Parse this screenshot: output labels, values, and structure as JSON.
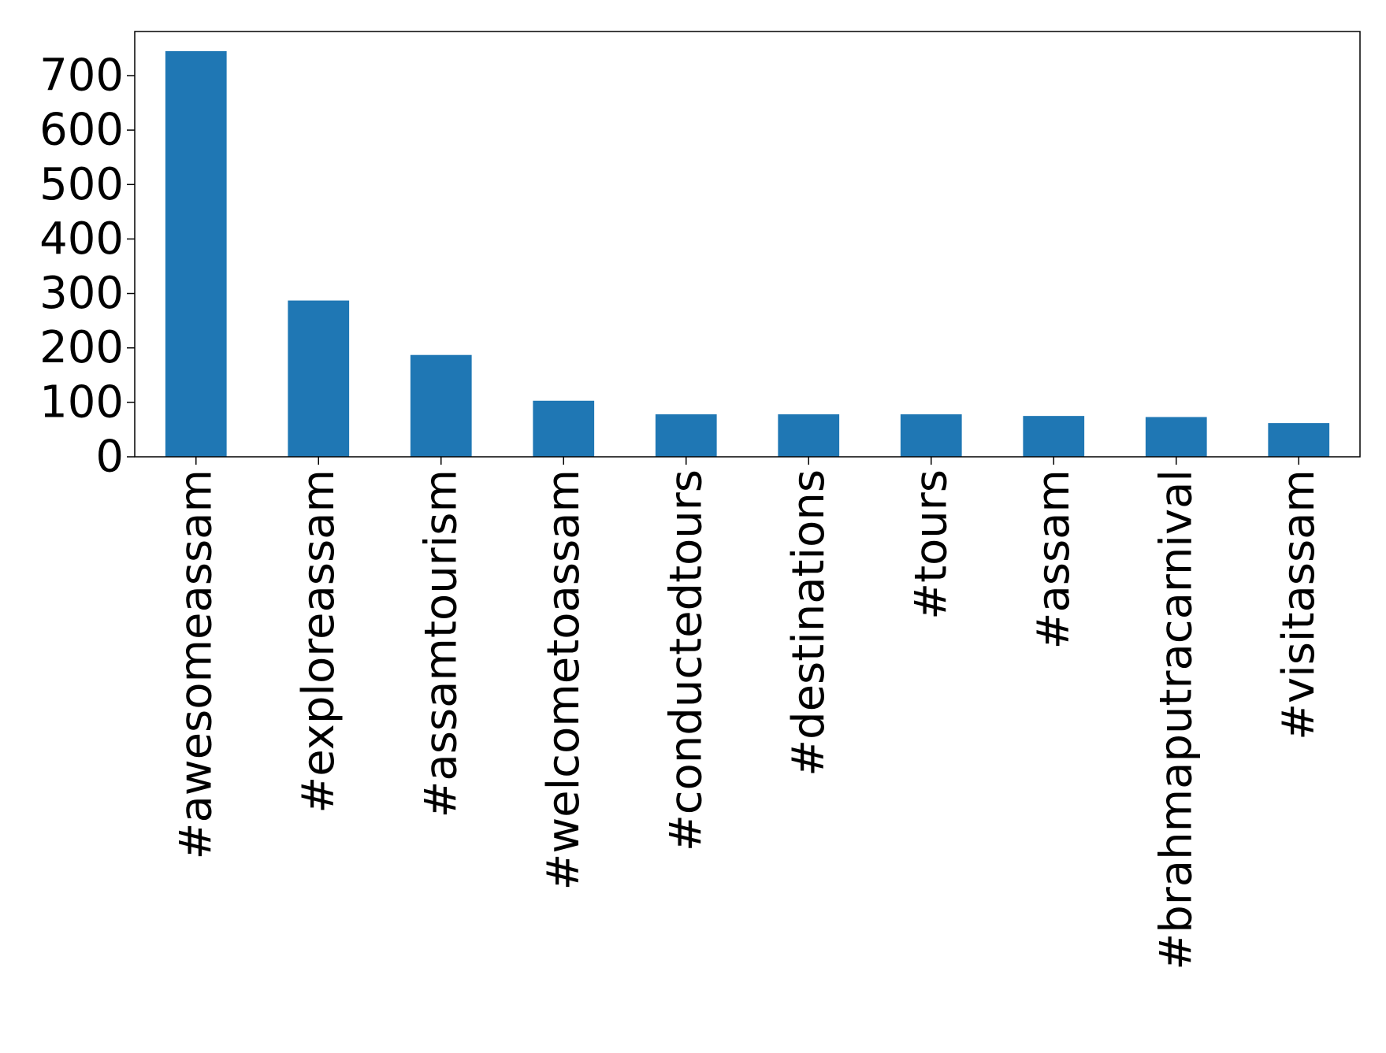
{
  "chart_data": {
    "type": "bar",
    "title": "",
    "xlabel": "",
    "ylabel": "",
    "categories": [
      "#awesomeassam",
      "#exploreassam",
      "#assamtourism",
      "#welcometoassam",
      "#conductedtours",
      "#destinations",
      "#tours",
      "#assam",
      "#brahmaputracarnival",
      "#visitassam"
    ],
    "values": [
      745,
      287,
      187,
      103,
      78,
      78,
      78,
      75,
      73,
      62
    ],
    "ylim": [
      0,
      781
    ],
    "yticks": [
      0,
      100,
      200,
      300,
      400,
      500,
      600,
      700
    ],
    "grid": false,
    "legend": "none",
    "colors": {
      "bar": "#1f77b4",
      "axis": "#000000",
      "text": "#000000"
    }
  }
}
